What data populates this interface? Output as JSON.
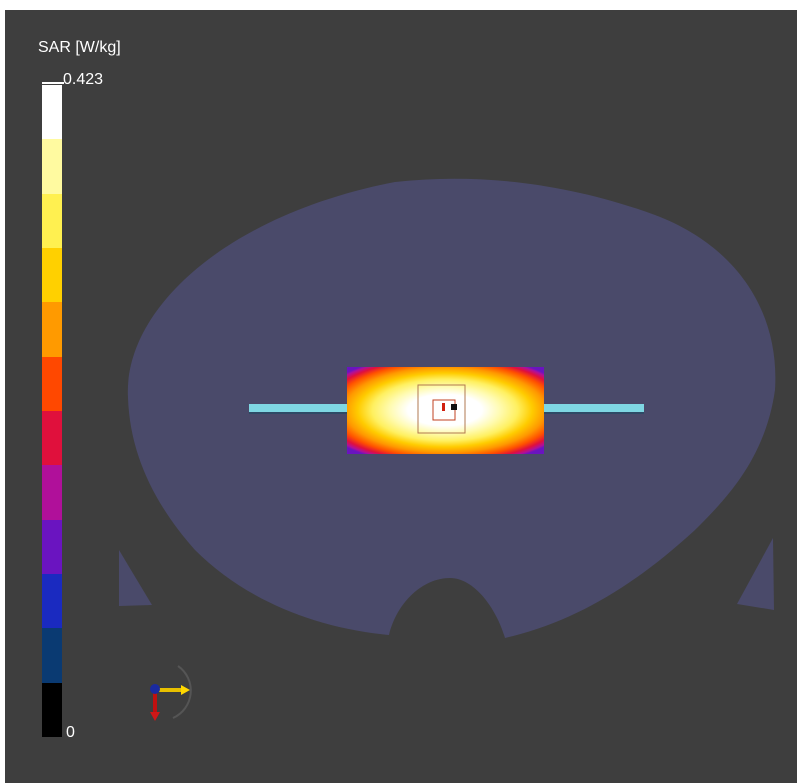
{
  "colorbar": {
    "title": "SAR [W/kg]",
    "max_label": "0.423",
    "min_label": "0",
    "colors": [
      "#ffffff",
      "#fffaa0",
      "#fff050",
      "#ffd000",
      "#ff9a00",
      "#ff4800",
      "#e0103c",
      "#b0109a",
      "#6a14c0",
      "#1a2ac0",
      "#0a3a72",
      "#000000"
    ]
  },
  "scene": {
    "background_color": "#3e3e3e",
    "phantom_color": "#4a4a6a",
    "dipole_color": "#7fd7e3"
  },
  "triad": {
    "icon": "axis-triad-icon"
  }
}
